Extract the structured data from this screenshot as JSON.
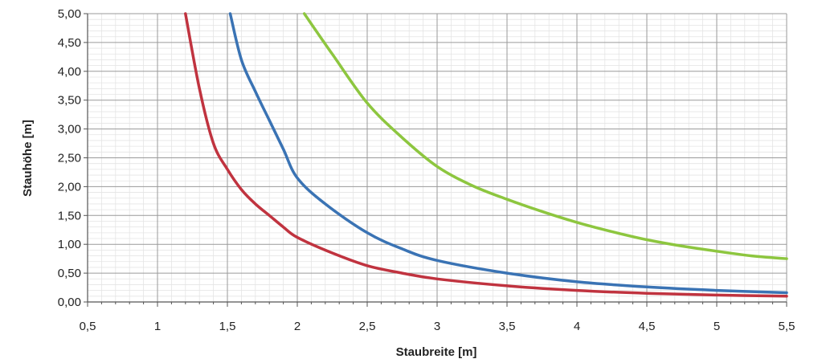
{
  "chart_data": {
    "type": "line",
    "title": "",
    "xlabel": "Staubreite [m]",
    "ylabel": "Stauhöhe [m]",
    "xlim": [
      0.5,
      5.5
    ],
    "ylim": [
      0,
      5
    ],
    "x_ticks": [
      "0,5",
      "1",
      "1,5",
      "2",
      "2,5",
      "3",
      "3,5",
      "4",
      "4,5",
      "5",
      "5,5"
    ],
    "y_ticks": [
      "0,00",
      "0,50",
      "1,00",
      "1,50",
      "2,00",
      "2,50",
      "3,00",
      "3,50",
      "4,00",
      "4,50",
      "5,00"
    ],
    "grid": true,
    "legend": "none",
    "series": [
      {
        "color": "#c0333f",
        "points": [
          [
            1.2,
            5.0
          ],
          [
            1.3,
            3.7
          ],
          [
            1.4,
            2.75
          ],
          [
            1.5,
            2.3
          ],
          [
            1.6,
            1.95
          ],
          [
            1.7,
            1.7
          ],
          [
            1.8,
            1.5
          ],
          [
            1.9,
            1.3
          ],
          [
            2.0,
            1.12
          ],
          [
            2.25,
            0.85
          ],
          [
            2.5,
            0.63
          ],
          [
            2.75,
            0.5
          ],
          [
            3.0,
            0.4
          ],
          [
            3.5,
            0.28
          ],
          [
            4.0,
            0.2
          ],
          [
            4.5,
            0.15
          ],
          [
            5.0,
            0.12
          ],
          [
            5.5,
            0.1
          ]
        ]
      },
      {
        "color": "#3a73b4",
        "points": [
          [
            1.52,
            5.0
          ],
          [
            1.6,
            4.2
          ],
          [
            1.7,
            3.65
          ],
          [
            1.8,
            3.15
          ],
          [
            1.9,
            2.65
          ],
          [
            2.0,
            2.15
          ],
          [
            2.2,
            1.7
          ],
          [
            2.5,
            1.2
          ],
          [
            2.75,
            0.92
          ],
          [
            3.0,
            0.72
          ],
          [
            3.5,
            0.5
          ],
          [
            4.0,
            0.35
          ],
          [
            4.5,
            0.26
          ],
          [
            5.0,
            0.2
          ],
          [
            5.5,
            0.16
          ]
        ]
      },
      {
        "color": "#8dc63f",
        "points": [
          [
            2.05,
            5.0
          ],
          [
            2.25,
            4.3
          ],
          [
            2.5,
            3.45
          ],
          [
            2.75,
            2.85
          ],
          [
            3.0,
            2.35
          ],
          [
            3.25,
            2.02
          ],
          [
            3.5,
            1.78
          ],
          [
            3.75,
            1.57
          ],
          [
            4.0,
            1.38
          ],
          [
            4.25,
            1.22
          ],
          [
            4.5,
            1.08
          ],
          [
            4.75,
            0.97
          ],
          [
            5.0,
            0.88
          ],
          [
            5.25,
            0.8
          ],
          [
            5.5,
            0.75
          ]
        ]
      }
    ]
  }
}
